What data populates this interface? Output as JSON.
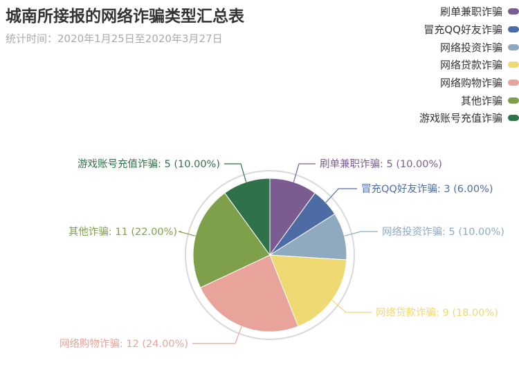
{
  "title": "城南所接报的网络诈骗类型汇总表",
  "subtitle": "统计时间：2020年1月25日至2020年3月27日",
  "chart_data": {
    "type": "pie",
    "title": "城南所接报的网络诈骗类型汇总表",
    "subtitle": "统计时间：2020年1月25日至2020年3月27日",
    "legend_position": "top-right",
    "slices": [
      {
        "name": "刷单兼职诈骗",
        "value": 5,
        "percent": "10.00%",
        "color": "#7b5c91"
      },
      {
        "name": "冒充QQ好友诈骗",
        "value": 3,
        "percent": "6.00%",
        "color": "#4d6ca6"
      },
      {
        "name": "网络投资诈骗",
        "value": 5,
        "percent": "10.00%",
        "color": "#8fa9bf"
      },
      {
        "name": "网络贷款诈骗",
        "value": 9,
        "percent": "18.00%",
        "color": "#efd973"
      },
      {
        "name": "网络购物诈骗",
        "value": 12,
        "percent": "24.00%",
        "color": "#e8a39b"
      },
      {
        "name": "其他诈骗",
        "value": 11,
        "percent": "22.00%",
        "color": "#7ea04a"
      },
      {
        "name": "游戏账号充值诈骗",
        "value": 5,
        "percent": "10.00%",
        "color": "#2f7148"
      }
    ]
  }
}
